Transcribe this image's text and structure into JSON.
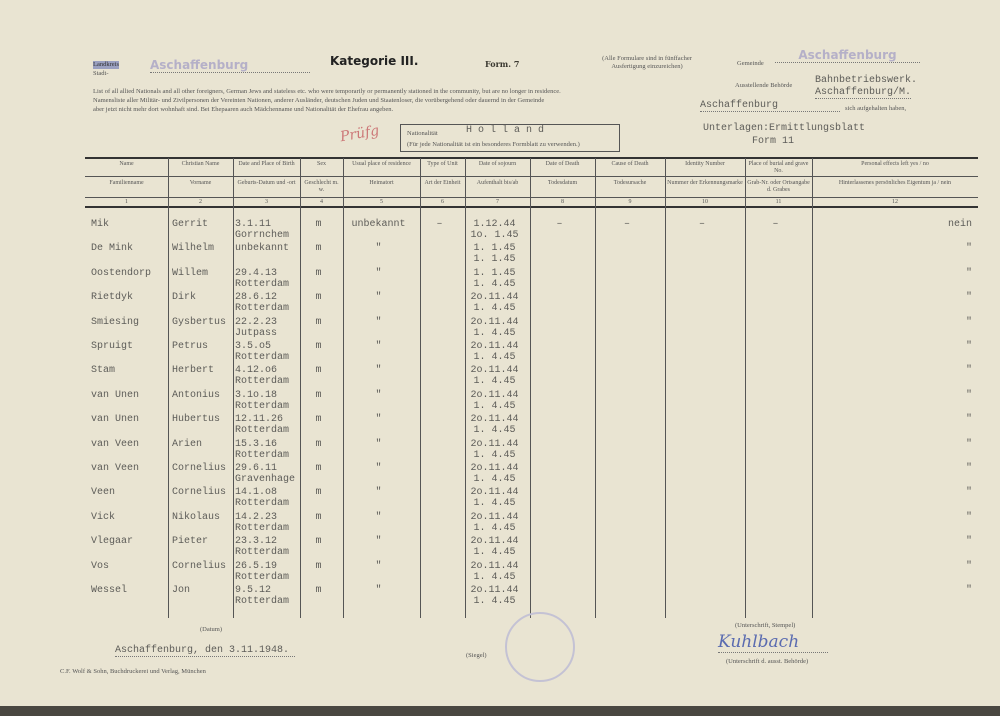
{
  "header": {
    "stadt_label": "Stadt-",
    "landkreis_label": "Landkreis",
    "kreis_value": "Aschaffenburg",
    "title": "Kategorie III.",
    "form": "Form. 7",
    "note": "(Alle Formulare sind in fünffacher Ausfertigung einzureichen)",
    "gemeinde_label": "Gemeinde",
    "gemeinde_value": "Aschaffenburg",
    "behoerde_label": "Ausstellende Behörde",
    "behoerde_value_1": "Bahnbetriebswerk.",
    "behoerde_value_2": "Aschaffenburg/M.",
    "intro_en": "List of all allied Nationals and all other foreigners, German Jews and stateless etc. who were temporarily or permanently stationed in the community, but are no longer in residence.",
    "intro_de_1": "Namensliste aller Militär- und Zivilpersonen der Vereinten Nationen, anderer Ausländer, deutschen Juden und Staatenloser, die vorübergehend oder dauernd in der Gemeinde",
    "intro_de_place": "Aschaffenburg",
    "intro_de_2": "sich aufgehalten haben,",
    "intro_de_3": "aber jetzt nicht mehr dort wohnhaft sind. Bei Ehepaaren auch Mädchenname und Nationalität der Ehefrau angeben.",
    "handwritten_mark": "Prüfg",
    "nationality_label": "Nationalität",
    "nationality_value": "H o l l a n d",
    "nationality_note": "(Für jede Nationalität ist ein besonderes Formblatt zu verwenden.)",
    "basis_1": "Unterlagen:Ermittlungsblatt",
    "basis_2": "Form 11"
  },
  "columns": [
    {
      "en": "Name",
      "de": "Familienname",
      "no": "1"
    },
    {
      "en": "Christian Name",
      "de": "Vorname",
      "no": "2"
    },
    {
      "en": "Date and Place of Birth",
      "de": "Geburts-Datum und -ort",
      "no": "3"
    },
    {
      "en": "Sex",
      "de": "Geschlecht m. w.",
      "no": "4"
    },
    {
      "en": "Usual place of residence",
      "de": "Heimatort",
      "no": "5"
    },
    {
      "en": "Type of Unit",
      "de": "Art der Einheit",
      "no": "6"
    },
    {
      "en": "Date of sojourn",
      "de": "Aufenthalt bis/ab",
      "no": "7"
    },
    {
      "en": "Date of Death",
      "de": "Todesdatum",
      "no": "8"
    },
    {
      "en": "Cause of Death",
      "de": "Todesursache",
      "no": "9"
    },
    {
      "en": "Identity Number",
      "de": "Nummer der Erkennungsmarke",
      "no": "10"
    },
    {
      "en": "Place of burial and grave No.",
      "de": "Grab-Nr. oder Ortsangabe d. Grabes",
      "no": "11"
    },
    {
      "en": "Personal effects left yes / no",
      "de": "Hinterlassenes persönliches Eigentum ja / nein",
      "no": "12"
    }
  ],
  "rows": [
    {
      "name": "Mik",
      "first": "Gerrit",
      "birth1": "3.1.11",
      "birth2": "Gorrnchem",
      "sex": "m",
      "home": "unbekannt",
      "unit": "–",
      "stay1": "1.12.44",
      "stay2": "1o. 1.45",
      "death": "–",
      "cause": "–",
      "id": "–",
      "grave": "–",
      "effects": "nein"
    },
    {
      "name": "De Mink",
      "first": "Wilhelm",
      "birth1": "unbekannt",
      "birth2": "",
      "sex": "m",
      "home": "\"",
      "unit": "",
      "stay1": "1. 1.45",
      "stay2": "1. 1.45",
      "death": "",
      "cause": "",
      "id": "",
      "grave": "",
      "effects": "\""
    },
    {
      "name": "Oostendorp",
      "first": "Willem",
      "birth1": "29.4.13",
      "birth2": "Rotterdam",
      "sex": "m",
      "home": "\"",
      "unit": "",
      "stay1": "1. 1.45",
      "stay2": "1. 4.45",
      "death": "",
      "cause": "",
      "id": "",
      "grave": "",
      "effects": "\""
    },
    {
      "name": "Rietdyk",
      "first": "Dirk",
      "birth1": "28.6.12",
      "birth2": "Rotterdam",
      "sex": "m",
      "home": "\"",
      "unit": "",
      "stay1": "2o.11.44",
      "stay2": "1. 4.45",
      "death": "",
      "cause": "",
      "id": "",
      "grave": "",
      "effects": "\""
    },
    {
      "name": "Smiesing",
      "first": "Gysbertus",
      "birth1": "22.2.23",
      "birth2": "Jutpass",
      "sex": "m",
      "home": "\"",
      "unit": "",
      "stay1": "2o.11.44",
      "stay2": "1. 4.45",
      "death": "",
      "cause": "",
      "id": "",
      "grave": "",
      "effects": "\""
    },
    {
      "name": "Spruigt",
      "first": "Petrus",
      "birth1": "3.5.o5",
      "birth2": "Rotterdam",
      "sex": "m",
      "home": "\"",
      "unit": "",
      "stay1": "2o.11.44",
      "stay2": "1. 4.45",
      "death": "",
      "cause": "",
      "id": "",
      "grave": "",
      "effects": "\""
    },
    {
      "name": "Stam",
      "first": "Herbert",
      "birth1": "4.12.o6",
      "birth2": "Rotterdam",
      "sex": "m",
      "home": "\"",
      "unit": "",
      "stay1": "2o.11.44",
      "stay2": "1. 4.45",
      "death": "",
      "cause": "",
      "id": "",
      "grave": "",
      "effects": "\""
    },
    {
      "name": "van Unen",
      "first": "Antonius",
      "birth1": "3.1o.18",
      "birth2": "Rotterdam",
      "sex": "m",
      "home": "\"",
      "unit": "",
      "stay1": "2o.11.44",
      "stay2": "1. 4.45",
      "death": "",
      "cause": "",
      "id": "",
      "grave": "",
      "effects": "\""
    },
    {
      "name": "van Unen",
      "first": "Hubertus",
      "birth1": "12.11.26",
      "birth2": "Rotterdam",
      "sex": "m",
      "home": "\"",
      "unit": "",
      "stay1": "2o.11.44",
      "stay2": "1. 4.45",
      "death": "",
      "cause": "",
      "id": "",
      "grave": "",
      "effects": "\""
    },
    {
      "name": "van Veen",
      "first": "Arien",
      "birth1": "15.3.16",
      "birth2": "Rotterdam",
      "sex": "m",
      "home": "\"",
      "unit": "",
      "stay1": "2o.11.44",
      "stay2": "1. 4.45",
      "death": "",
      "cause": "",
      "id": "",
      "grave": "",
      "effects": "\""
    },
    {
      "name": "van Veen",
      "first": "Cornelius",
      "birth1": "29.6.11",
      "birth2": "Gravenhage",
      "sex": "m",
      "home": "\"",
      "unit": "",
      "stay1": "2o.11.44",
      "stay2": "1. 4.45",
      "death": "",
      "cause": "",
      "id": "",
      "grave": "",
      "effects": "\""
    },
    {
      "name": "Veen",
      "first": "Cornelius",
      "birth1": "14.1.o8",
      "birth2": "Rotterdam",
      "sex": "m",
      "home": "\"",
      "unit": "",
      "stay1": "2o.11.44",
      "stay2": "1. 4.45",
      "death": "",
      "cause": "",
      "id": "",
      "grave": "",
      "effects": "\""
    },
    {
      "name": "Vick",
      "first": "Nikolaus",
      "birth1": "14.2.23",
      "birth2": "Rotterdam",
      "sex": "m",
      "home": "\"",
      "unit": "",
      "stay1": "2o.11.44",
      "stay2": "1. 4.45",
      "death": "",
      "cause": "",
      "id": "",
      "grave": "",
      "effects": "\""
    },
    {
      "name": "Vlegaar",
      "first": "Pieter",
      "birth1": "23.3.12",
      "birth2": "Rotterdam",
      "sex": "m",
      "home": "\"",
      "unit": "",
      "stay1": "2o.11.44",
      "stay2": "1. 4.45",
      "death": "",
      "cause": "",
      "id": "",
      "grave": "",
      "effects": "\""
    },
    {
      "name": "Vos",
      "first": "Cornelius",
      "birth1": "26.5.19",
      "birth2": "Rotterdam",
      "sex": "m",
      "home": "\"",
      "unit": "",
      "stay1": "2o.11.44",
      "stay2": "1. 4.45",
      "death": "",
      "cause": "",
      "id": "",
      "grave": "",
      "effects": "\""
    },
    {
      "name": "Wessel",
      "first": "Jon",
      "birth1": "9.5.12",
      "birth2": "Rotterdam",
      "sex": "m",
      "home": "\"",
      "unit": "",
      "stay1": "2o.11.44",
      "stay2": "1. 4.45",
      "death": "",
      "cause": "",
      "id": "",
      "grave": "",
      "effects": "\""
    }
  ],
  "footer": {
    "date_caption": "(Datum)",
    "place_date": "Aschaffenburg, den 3.11.1948.",
    "seal_caption": "(Siegel)",
    "signature_caption": "(Unterschrift, Stempel)",
    "signature_sub": "(Unterschrift d. ausst. Behörde)",
    "signature": "Kuhlbach",
    "printer": "C.F. Wolf & Sohn, Buchdruckerei und Verlag, München"
  },
  "colors": {
    "paper": "#e9e4d2",
    "typewriter": "#5d5c58",
    "stamp": "#b5b0c8",
    "signature_ink": "#5a6bb0"
  }
}
